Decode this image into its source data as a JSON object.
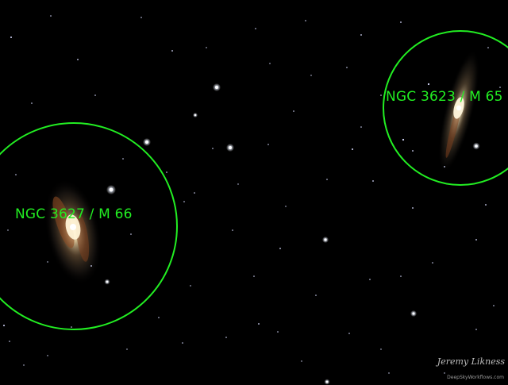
{
  "annotations": {
    "galaxy_left": {
      "label": "NGC 3627 / M 66",
      "circle_color": "#22ee22"
    },
    "galaxy_right": {
      "label": "NGC 3623 / M 65",
      "circle_color": "#22ee22"
    }
  },
  "credits": {
    "author": "Jeremy Likness",
    "website": "DeepSkyWorkflows.com"
  },
  "colors": {
    "background": "#000000",
    "annotation": "#22ee22"
  }
}
